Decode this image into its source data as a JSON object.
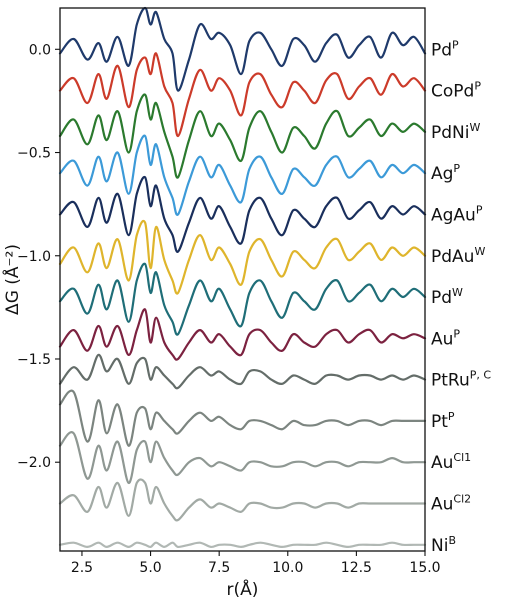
{
  "chart_data": {
    "type": "line",
    "title": "",
    "xlabel": "r(Å)",
    "ylabel": "ΔG (Å⁻²)",
    "xlim": [
      1.7,
      15.0
    ],
    "ylim": [
      -2.43,
      0.2
    ],
    "x_ticks": [
      2.5,
      5.0,
      7.5,
      10.0,
      12.5,
      15.0
    ],
    "x_tick_labels": [
      "2.5",
      "5.0",
      "7.5",
      "10.0",
      "12.5",
      "15.0"
    ],
    "y_ticks": [
      0.0,
      -0.5,
      -1.0,
      -1.5,
      -2.0
    ],
    "y_tick_labels": [
      "0.0",
      "−0.5",
      "−1.0",
      "−1.5",
      "−2.0"
    ],
    "grid": false,
    "legend": "none",
    "series": [
      {
        "base": "Pd",
        "sup": "P",
        "color": "#1f3a6b",
        "offset": 0.0,
        "x": [
          1.7,
          2.2,
          2.7,
          3.1,
          3.4,
          3.8,
          4.2,
          4.5,
          4.8,
          5.0,
          5.2,
          5.5,
          5.8,
          6.0,
          6.4,
          6.8,
          7.2,
          7.5,
          7.9,
          8.3,
          8.6,
          9.0,
          9.4,
          9.8,
          10.2,
          10.6,
          11.0,
          11.4,
          11.8,
          12.2,
          12.6,
          13.0,
          13.4,
          13.8,
          14.2,
          14.6,
          15.0
        ],
        "y": [
          -0.02,
          0.05,
          -0.05,
          0.03,
          -0.06,
          0.06,
          -0.08,
          0.12,
          0.2,
          0.12,
          0.18,
          0.05,
          -0.02,
          -0.2,
          -0.05,
          0.12,
          0.05,
          0.08,
          0.02,
          -0.12,
          0.04,
          0.08,
          0.0,
          -0.08,
          0.05,
          0.02,
          -0.06,
          0.03,
          0.07,
          -0.04,
          0.02,
          0.06,
          -0.04,
          0.08,
          0.02,
          0.06,
          -0.02
        ]
      },
      {
        "base": "CoPd",
        "sup": "P",
        "color": "#cc3b2a",
        "offset": -0.2,
        "x": [
          1.7,
          2.2,
          2.7,
          3.1,
          3.4,
          3.8,
          4.2,
          4.5,
          4.8,
          5.0,
          5.2,
          5.5,
          5.8,
          6.0,
          6.4,
          6.8,
          7.2,
          7.5,
          7.9,
          8.3,
          8.6,
          9.0,
          9.4,
          9.8,
          10.2,
          10.6,
          11.0,
          11.4,
          11.8,
          12.2,
          12.6,
          13.0,
          13.4,
          13.8,
          14.2,
          14.6,
          15.0
        ],
        "y": [
          -0.2,
          -0.14,
          -0.26,
          -0.12,
          -0.24,
          -0.08,
          -0.28,
          -0.1,
          -0.04,
          -0.12,
          -0.02,
          -0.18,
          -0.26,
          -0.42,
          -0.24,
          -0.1,
          -0.2,
          -0.14,
          -0.2,
          -0.32,
          -0.16,
          -0.12,
          -0.22,
          -0.28,
          -0.16,
          -0.2,
          -0.26,
          -0.15,
          -0.12,
          -0.24,
          -0.18,
          -0.14,
          -0.22,
          -0.12,
          -0.18,
          -0.14,
          -0.2
        ]
      },
      {
        "base": "PdNi",
        "sup": "W",
        "color": "#2b7a2e",
        "offset": -0.4,
        "x": [
          1.7,
          2.2,
          2.7,
          3.1,
          3.4,
          3.8,
          4.2,
          4.5,
          4.8,
          5.0,
          5.2,
          5.5,
          5.8,
          6.0,
          6.4,
          6.8,
          7.2,
          7.5,
          7.9,
          8.3,
          8.6,
          9.0,
          9.4,
          9.8,
          10.2,
          10.6,
          11.0,
          11.4,
          11.8,
          12.2,
          12.6,
          13.0,
          13.4,
          13.8,
          14.2,
          14.6,
          15.0
        ],
        "y": [
          -0.42,
          -0.34,
          -0.46,
          -0.32,
          -0.44,
          -0.3,
          -0.5,
          -0.3,
          -0.22,
          -0.34,
          -0.26,
          -0.4,
          -0.52,
          -0.62,
          -0.44,
          -0.3,
          -0.42,
          -0.36,
          -0.44,
          -0.54,
          -0.38,
          -0.3,
          -0.4,
          -0.5,
          -0.38,
          -0.42,
          -0.48,
          -0.36,
          -0.3,
          -0.42,
          -0.38,
          -0.34,
          -0.42,
          -0.36,
          -0.4,
          -0.36,
          -0.4
        ]
      },
      {
        "base": "Ag",
        "sup": "P",
        "color": "#3c9ad8",
        "offset": -0.6,
        "x": [
          1.7,
          2.2,
          2.7,
          3.1,
          3.4,
          3.8,
          4.2,
          4.5,
          4.8,
          5.0,
          5.2,
          5.5,
          5.8,
          6.0,
          6.4,
          6.8,
          7.2,
          7.5,
          7.9,
          8.3,
          8.6,
          9.0,
          9.4,
          9.8,
          10.2,
          10.6,
          11.0,
          11.4,
          11.8,
          12.2,
          12.6,
          13.0,
          13.4,
          13.8,
          14.2,
          14.6,
          15.0
        ],
        "y": [
          -0.6,
          -0.54,
          -0.66,
          -0.52,
          -0.64,
          -0.5,
          -0.7,
          -0.5,
          -0.42,
          -0.56,
          -0.46,
          -0.62,
          -0.72,
          -0.8,
          -0.64,
          -0.52,
          -0.62,
          -0.56,
          -0.66,
          -0.74,
          -0.58,
          -0.52,
          -0.62,
          -0.7,
          -0.58,
          -0.62,
          -0.66,
          -0.56,
          -0.52,
          -0.62,
          -0.58,
          -0.54,
          -0.62,
          -0.56,
          -0.6,
          -0.56,
          -0.6
        ]
      },
      {
        "base": "AgAu",
        "sup": "P",
        "color": "#1a2f5c",
        "offset": -0.8,
        "x": [
          1.7,
          2.2,
          2.7,
          3.1,
          3.4,
          3.8,
          4.2,
          4.5,
          4.8,
          5.0,
          5.2,
          5.5,
          5.8,
          6.0,
          6.4,
          6.8,
          7.2,
          7.5,
          7.9,
          8.3,
          8.6,
          9.0,
          9.4,
          9.8,
          10.2,
          10.6,
          11.0,
          11.4,
          11.8,
          12.2,
          12.6,
          13.0,
          13.4,
          13.8,
          14.2,
          14.6,
          15.0
        ],
        "y": [
          -0.8,
          -0.74,
          -0.86,
          -0.72,
          -0.84,
          -0.7,
          -0.9,
          -0.7,
          -0.62,
          -0.76,
          -0.66,
          -0.82,
          -0.9,
          -0.98,
          -0.84,
          -0.72,
          -0.82,
          -0.76,
          -0.86,
          -0.94,
          -0.78,
          -0.72,
          -0.82,
          -0.9,
          -0.78,
          -0.82,
          -0.86,
          -0.76,
          -0.72,
          -0.82,
          -0.78,
          -0.74,
          -0.82,
          -0.76,
          -0.8,
          -0.76,
          -0.8
        ]
      },
      {
        "base": "PdAu",
        "sup": "W",
        "color": "#dfb52c",
        "offset": -1.0,
        "x": [
          1.7,
          2.2,
          2.7,
          3.1,
          3.4,
          3.8,
          4.2,
          4.5,
          4.8,
          5.0,
          5.2,
          5.5,
          5.8,
          6.0,
          6.4,
          6.8,
          7.2,
          7.5,
          7.9,
          8.3,
          8.6,
          9.0,
          9.4,
          9.8,
          10.2,
          10.6,
          11.0,
          11.4,
          11.8,
          12.2,
          12.6,
          13.0,
          13.4,
          13.8,
          14.2,
          14.6,
          15.0
        ],
        "y": [
          -1.04,
          -0.96,
          -1.08,
          -0.94,
          -1.06,
          -0.92,
          -1.12,
          -0.9,
          -0.84,
          -1.06,
          -0.86,
          -1.02,
          -1.12,
          -1.18,
          -1.02,
          -0.9,
          -1.02,
          -0.96,
          -1.04,
          -1.14,
          -0.98,
          -0.92,
          -1.02,
          -1.1,
          -0.98,
          -1.02,
          -1.06,
          -0.96,
          -0.92,
          -1.02,
          -0.98,
          -0.94,
          -1.02,
          -0.96,
          -1.0,
          -0.96,
          -1.0
        ]
      },
      {
        "base": "Pd",
        "sup": "W",
        "color": "#1f6e78",
        "offset": -1.2,
        "x": [
          1.7,
          2.2,
          2.7,
          3.1,
          3.4,
          3.8,
          4.2,
          4.5,
          4.8,
          5.0,
          5.2,
          5.5,
          5.8,
          6.0,
          6.4,
          6.8,
          7.2,
          7.5,
          7.9,
          8.3,
          8.6,
          9.0,
          9.4,
          9.8,
          10.2,
          10.6,
          11.0,
          11.4,
          11.8,
          12.2,
          12.6,
          13.0,
          13.4,
          13.8,
          14.2,
          14.6,
          15.0
        ],
        "y": [
          -1.22,
          -1.16,
          -1.28,
          -1.14,
          -1.26,
          -1.12,
          -1.32,
          -1.12,
          -1.04,
          -1.18,
          -1.08,
          -1.24,
          -1.32,
          -1.38,
          -1.24,
          -1.12,
          -1.22,
          -1.16,
          -1.26,
          -1.34,
          -1.18,
          -1.12,
          -1.22,
          -1.3,
          -1.18,
          -1.22,
          -1.26,
          -1.16,
          -1.12,
          -1.22,
          -1.18,
          -1.14,
          -1.22,
          -1.16,
          -1.2,
          -1.16,
          -1.2
        ]
      },
      {
        "base": "Au",
        "sup": "P",
        "color": "#7c2240",
        "offset": -1.4,
        "x": [
          1.7,
          2.2,
          2.7,
          3.1,
          3.4,
          3.8,
          4.2,
          4.5,
          4.8,
          5.0,
          5.2,
          5.5,
          5.8,
          6.0,
          6.4,
          6.8,
          7.2,
          7.5,
          7.9,
          8.3,
          8.6,
          9.0,
          9.4,
          9.8,
          10.2,
          10.6,
          11.0,
          11.4,
          11.8,
          12.2,
          12.6,
          13.0,
          13.4,
          13.8,
          14.2,
          14.6,
          15.0
        ],
        "y": [
          -1.44,
          -1.36,
          -1.46,
          -1.34,
          -1.44,
          -1.34,
          -1.48,
          -1.36,
          -1.26,
          -1.42,
          -1.3,
          -1.42,
          -1.48,
          -1.5,
          -1.42,
          -1.36,
          -1.42,
          -1.38,
          -1.44,
          -1.48,
          -1.38,
          -1.36,
          -1.42,
          -1.46,
          -1.38,
          -1.42,
          -1.44,
          -1.38,
          -1.36,
          -1.42,
          -1.38,
          -1.36,
          -1.42,
          -1.38,
          -1.4,
          -1.38,
          -1.4
        ]
      },
      {
        "base": "PtRu",
        "sup": "P, C",
        "color": "#646d69",
        "offset": -1.6,
        "x": [
          1.7,
          2.2,
          2.7,
          3.1,
          3.4,
          3.8,
          4.2,
          4.5,
          4.8,
          5.0,
          5.2,
          5.5,
          5.8,
          6.0,
          6.4,
          6.8,
          7.2,
          7.5,
          7.9,
          8.3,
          8.6,
          9.0,
          9.4,
          9.8,
          10.2,
          10.6,
          11.0,
          11.4,
          11.8,
          12.2,
          12.6,
          13.0,
          13.4,
          13.8,
          14.2,
          14.6,
          15.0
        ],
        "y": [
          -1.62,
          -1.54,
          -1.6,
          -1.48,
          -1.56,
          -1.5,
          -1.62,
          -1.52,
          -1.5,
          -1.6,
          -1.54,
          -1.58,
          -1.62,
          -1.64,
          -1.58,
          -1.54,
          -1.58,
          -1.56,
          -1.6,
          -1.62,
          -1.56,
          -1.56,
          -1.6,
          -1.62,
          -1.58,
          -1.6,
          -1.62,
          -1.58,
          -1.58,
          -1.6,
          -1.58,
          -1.58,
          -1.6,
          -1.58,
          -1.6,
          -1.58,
          -1.6
        ]
      },
      {
        "base": "Pt",
        "sup": "P",
        "color": "#7c8580",
        "offset": -1.8,
        "x": [
          1.7,
          2.2,
          2.7,
          3.1,
          3.4,
          3.8,
          4.2,
          4.5,
          4.8,
          5.0,
          5.2,
          5.5,
          5.8,
          6.0,
          6.4,
          6.8,
          7.2,
          7.5,
          7.9,
          8.3,
          8.6,
          9.0,
          9.4,
          9.8,
          10.2,
          10.6,
          11.0,
          11.4,
          11.8,
          12.2,
          12.6,
          13.0,
          13.4,
          13.8,
          14.2,
          14.6,
          15.0
        ],
        "y": [
          -1.72,
          -1.66,
          -1.9,
          -1.7,
          -1.86,
          -1.72,
          -1.92,
          -1.76,
          -1.74,
          -1.84,
          -1.76,
          -1.8,
          -1.84,
          -1.86,
          -1.8,
          -1.76,
          -1.8,
          -1.78,
          -1.82,
          -1.84,
          -1.8,
          -1.8,
          -1.82,
          -1.84,
          -1.8,
          -1.82,
          -1.82,
          -1.8,
          -1.8,
          -1.82,
          -1.8,
          -1.8,
          -1.82,
          -1.8,
          -1.8,
          -1.8,
          -1.8
        ]
      },
      {
        "base": "Au",
        "sup": "Cl1",
        "color": "#8f9893",
        "offset": -2.0,
        "x": [
          1.7,
          2.2,
          2.7,
          3.1,
          3.4,
          3.8,
          4.2,
          4.5,
          4.8,
          5.0,
          5.2,
          5.5,
          5.8,
          6.0,
          6.4,
          6.8,
          7.2,
          7.5,
          7.9,
          8.3,
          8.6,
          9.0,
          9.4,
          9.8,
          10.2,
          10.6,
          11.0,
          11.4,
          11.8,
          12.2,
          12.6,
          13.0,
          13.4,
          13.8,
          14.2,
          14.6,
          15.0
        ],
        "y": [
          -1.92,
          -1.86,
          -2.08,
          -1.92,
          -2.04,
          -1.9,
          -2.1,
          -1.94,
          -1.9,
          -2.0,
          -1.9,
          -1.98,
          -2.04,
          -2.06,
          -2.0,
          -1.98,
          -2.02,
          -2.0,
          -2.02,
          -2.04,
          -2.0,
          -2.0,
          -2.02,
          -2.02,
          -2.0,
          -2.0,
          -2.02,
          -2.0,
          -2.0,
          -2.02,
          -2.0,
          -2.0,
          -2.0,
          -1.98,
          -2.0,
          -2.0,
          -2.0
        ]
      },
      {
        "base": "Au",
        "sup": "Cl2",
        "color": "#a2aaa5",
        "offset": -2.2,
        "x": [
          1.7,
          2.2,
          2.7,
          3.1,
          3.4,
          3.8,
          4.2,
          4.5,
          4.8,
          5.0,
          5.2,
          5.5,
          5.8,
          6.0,
          6.4,
          6.8,
          7.2,
          7.5,
          7.9,
          8.3,
          8.6,
          9.0,
          9.4,
          9.8,
          10.2,
          10.6,
          11.0,
          11.4,
          11.8,
          12.2,
          12.6,
          13.0,
          13.4,
          13.8,
          14.2,
          14.6,
          15.0
        ],
        "y": [
          -2.2,
          -2.16,
          -2.24,
          -2.12,
          -2.22,
          -2.1,
          -2.26,
          -2.1,
          -2.1,
          -2.2,
          -2.12,
          -2.2,
          -2.26,
          -2.28,
          -2.22,
          -2.18,
          -2.22,
          -2.2,
          -2.22,
          -2.24,
          -2.2,
          -2.2,
          -2.22,
          -2.22,
          -2.2,
          -2.2,
          -2.22,
          -2.2,
          -2.2,
          -2.22,
          -2.2,
          -2.2,
          -2.2,
          -2.2,
          -2.2,
          -2.2,
          -2.2
        ]
      },
      {
        "base": "Ni",
        "sup": "B",
        "color": "#b1b8b4",
        "offset": -2.4,
        "x": [
          1.7,
          2.2,
          2.7,
          3.1,
          3.4,
          3.8,
          4.2,
          4.5,
          4.8,
          5.0,
          5.2,
          5.5,
          5.8,
          6.0,
          6.4,
          6.8,
          7.2,
          7.5,
          7.9,
          8.3,
          8.6,
          9.0,
          9.4,
          9.8,
          10.2,
          10.6,
          11.0,
          11.4,
          11.8,
          12.2,
          12.6,
          13.0,
          13.4,
          13.8,
          14.2,
          14.6,
          15.0
        ],
        "y": [
          -2.4,
          -2.39,
          -2.41,
          -2.39,
          -2.41,
          -2.39,
          -2.41,
          -2.39,
          -2.4,
          -2.41,
          -2.39,
          -2.41,
          -2.39,
          -2.41,
          -2.4,
          -2.39,
          -2.41,
          -2.4,
          -2.4,
          -2.41,
          -2.4,
          -2.39,
          -2.4,
          -2.41,
          -2.4,
          -2.4,
          -2.4,
          -2.39,
          -2.4,
          -2.41,
          -2.4,
          -2.4,
          -2.4,
          -2.39,
          -2.4,
          -2.4,
          -2.4
        ]
      }
    ]
  }
}
